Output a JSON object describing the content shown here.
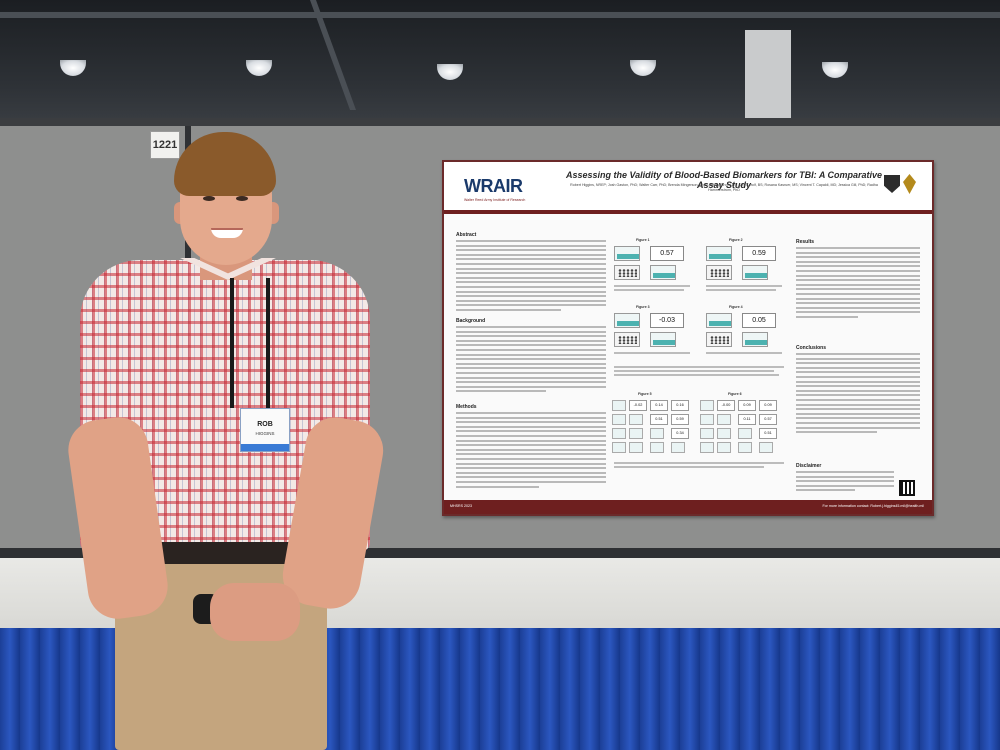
{
  "scene": {
    "booth_number": "1221",
    "badge": {
      "name": "ROB",
      "subtitle": "HIGGINS"
    }
  },
  "poster": {
    "logo": "WRAIR",
    "logo_tagline": "Walter Reed Army Institute of Research",
    "title": "Assessing the Validity of Blood-Based Biomarkers for TBI: A Comparative Assay Study",
    "authors": "Robert Higgins, NREP; Josh Gaston, PhD; Walter Carr, PhD; Brenda Mingerson, PhD; Jeffrey Strom, BS; Alex Korolf, BS; Rosana Kasruer, MS; Vincent T. Capaldi, MD; Jessica Gill, PhD; Radha Hammerstrom, PhD",
    "sections": {
      "abstract": "Abstract",
      "background": "Background",
      "methods": "Methods",
      "results": "Results",
      "conclusions": "Conclusions",
      "disclaimer": "Disclaimer"
    },
    "figures": {
      "fig1": {
        "label": "Figure 1",
        "value": "0.57"
      },
      "fig2": {
        "label": "Figure 2",
        "value": "0.59"
      },
      "fig3": {
        "label": "Figure 3",
        "value": "-0.03"
      },
      "fig4": {
        "label": "Figure 4",
        "value": "0.05"
      },
      "fig5": {
        "label": "Figure 5",
        "values": [
          "-0.02",
          "0.14",
          "0.16",
          "0.51",
          "0.59",
          "0.34"
        ]
      },
      "fig6": {
        "label": "Figure 6",
        "values": [
          "-0.00",
          "0.09",
          "0.09",
          "0.11",
          "0.57",
          "0.51"
        ]
      }
    },
    "footer_left": "MHSRS 2023",
    "footer_right": "For more information contact: Robert.j.higgins45.mil@health.mil"
  }
}
